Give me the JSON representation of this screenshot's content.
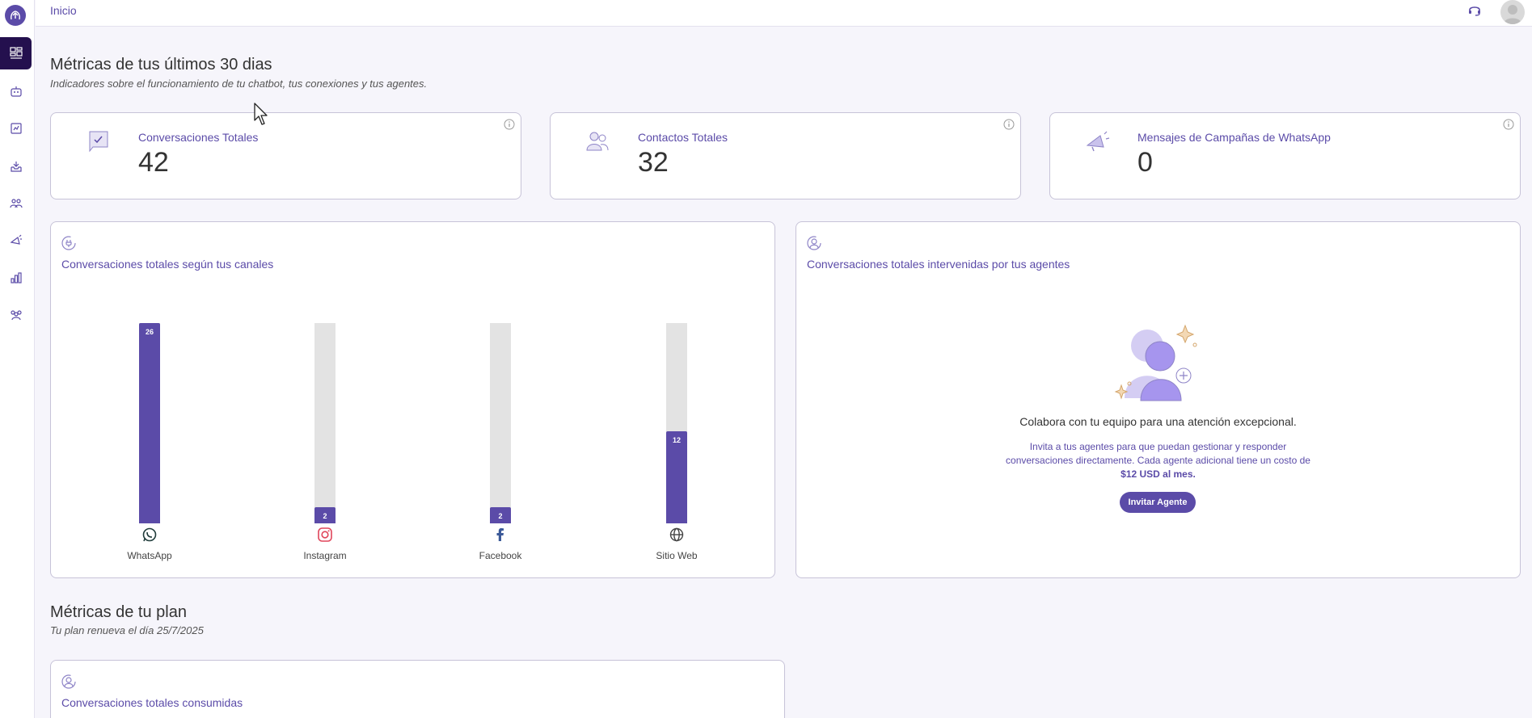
{
  "topbar": {
    "breadcrumb": "Inicio"
  },
  "sidebar": {
    "items": [
      {
        "icon": "dashboard-icon",
        "active": true
      },
      {
        "icon": "bot-icon",
        "active": false
      },
      {
        "icon": "book-icon",
        "active": false
      },
      {
        "icon": "inbox-icon",
        "active": false
      },
      {
        "icon": "contacts-icon",
        "active": false
      },
      {
        "icon": "campaign-icon",
        "active": false
      },
      {
        "icon": "reports-icon",
        "active": false
      },
      {
        "icon": "team-icon",
        "active": false
      }
    ]
  },
  "metrics": {
    "title": "Métricas de tus últimos 30 dias",
    "subtitle": "Indicadores sobre el funcionamiento de tu chatbot, tus conexiones y tus agentes.",
    "cards": [
      {
        "label": "Conversaciones Totales",
        "value": "42",
        "icon": "chat-check-icon"
      },
      {
        "label": "Contactos Totales",
        "value": "32",
        "icon": "users-icon"
      },
      {
        "label": "Mensajes de Campañas de WhatsApp",
        "value": "0",
        "icon": "megaphone-icon"
      }
    ]
  },
  "channels_panel": {
    "title": "Conversaciones totales según tus canales",
    "max_value": 26
  },
  "chart_data": {
    "type": "bar",
    "categories": [
      "WhatsApp",
      "Instagram",
      "Facebook",
      "Sitio Web"
    ],
    "values": [
      26,
      2,
      2,
      12
    ],
    "value_labels": [
      "26",
      "2",
      "2",
      "12"
    ],
    "title": "Conversaciones totales según tus canales",
    "colors": {
      "fill": "#5b4ba8",
      "track": "#e3e3e3"
    },
    "icons": [
      "whatsapp-icon",
      "instagram-icon",
      "facebook-icon",
      "globe-icon"
    ]
  },
  "agents_panel": {
    "title": "Conversaciones totales intervenidas por tus agentes",
    "empty_title": "Colabora con tu equipo para una atención excepcional.",
    "empty_desc": "Invita a tus agentes para que puedan gestionar y responder conversaciones directamente. Cada agente adicional tiene un costo de",
    "empty_price": "$12 USD al mes.",
    "button": "Invitar Agente"
  },
  "plan": {
    "title": "Métricas de tu plan",
    "subtitle": "Tu plan renueva el día 25/7/2025",
    "panel_title": "Conversaciones totales consumidas"
  },
  "colors": {
    "accent": "#5b4ba8",
    "sidebar_active": "#24104e"
  }
}
